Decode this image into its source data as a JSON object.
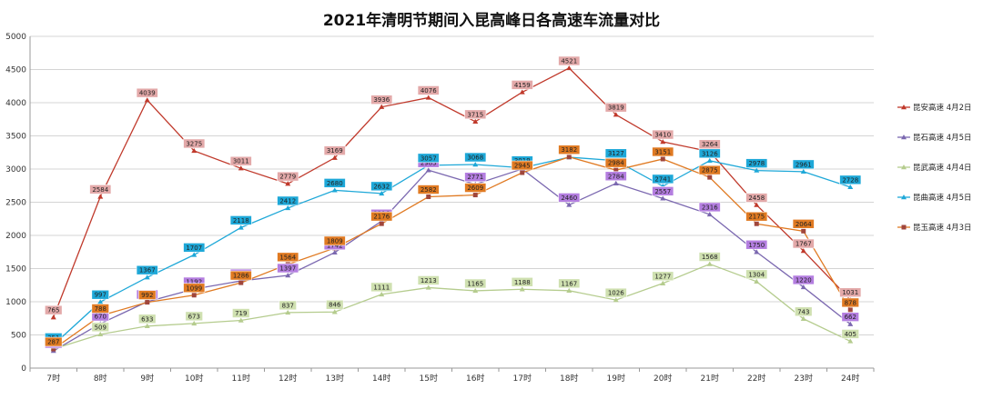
{
  "chart_data": {
    "type": "line",
    "title": "2021年清明节期间入昆高峰日各高速车流量对比",
    "categories": [
      "7时",
      "8时",
      "9时",
      "10时",
      "11时",
      "12时",
      "13时",
      "14时",
      "15时",
      "16时",
      "17时",
      "18时",
      "19时",
      "20时",
      "21时",
      "22时",
      "23时",
      "24时"
    ],
    "y_ticks": [
      "0",
      "500",
      "1000",
      "1500",
      "2000",
      "2500",
      "3000",
      "3500",
      "4000",
      "4500",
      "5000"
    ],
    "ylim": [
      0,
      5000
    ],
    "grid": true,
    "legend_position": "right",
    "series": [
      {
        "name": "昆安高速 4月2日",
        "color": "#c0392b",
        "label_bg": "#e3a9a9",
        "marker": "triangle",
        "values": [
          765,
          2584,
          4039,
          3275,
          3011,
          2779,
          3169,
          3936,
          4076,
          3715,
          4159,
          4521,
          3819,
          3410,
          3264,
          2458,
          1767,
          1031
        ]
      },
      {
        "name": "昆石高速 4月5日",
        "color": "#7b68b0",
        "label_bg": "#b47ee0",
        "marker": "triangle",
        "values": [
          260,
          670,
          1000,
          1192,
          1314,
          1397,
          1742,
          2216,
          2983,
          2771,
          3001,
          2460,
          2784,
          2557,
          2316,
          1750,
          1220,
          662
        ]
      },
      {
        "name": "昆武高速 4月4日",
        "color": "#b5cc8e",
        "label_bg": "#cfe0b0",
        "marker": "triangle",
        "values": [
          288,
          509,
          633,
          673,
          719,
          837,
          846,
          1111,
          1213,
          1165,
          1188,
          1167,
          1026,
          1277,
          1568,
          1304,
          743,
          405
        ]
      },
      {
        "name": "昆曲高速 4月5日",
        "color": "#1ea8d8",
        "label_bg": "#1ea8d8",
        "marker": "triangle",
        "values": [
          351,
          997,
          1367,
          1707,
          2118,
          2412,
          2680,
          2632,
          3057,
          3068,
          3019,
          3178,
          3127,
          2741,
          3126,
          2978,
          2961,
          2728
        ]
      },
      {
        "name": "昆玉高速 4月3日",
        "color": "#e07a22",
        "label_bg": "#e07a22",
        "marker": "square",
        "values": [
          287,
          788,
          992,
          1099,
          1286,
          1564,
          1809,
          2176,
          2582,
          2609,
          2945,
          3182,
          2984,
          3151,
          2875,
          2175,
          2064,
          878
        ]
      }
    ]
  }
}
